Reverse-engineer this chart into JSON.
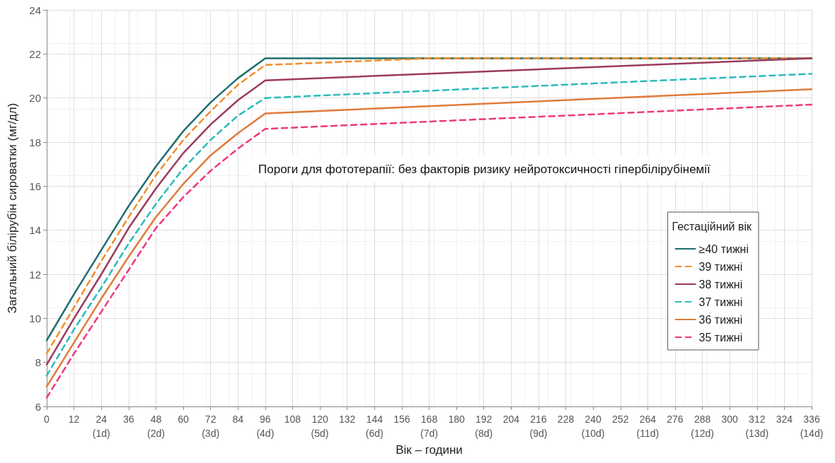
{
  "chart_data": {
    "type": "line",
    "xlabel": "Вік – години",
    "ylabel": "Загальний білірубін сироватки (мг/дл)",
    "legend_title": "Гестаційний вік",
    "annotations": [
      "Пороги для фототерапії: без факторів ризику нейротоксичності гіпербілірубінемії"
    ],
    "x": [
      0,
      12,
      24,
      36,
      48,
      60,
      72,
      84,
      96,
      336
    ],
    "series": [
      {
        "name": "≥40 тижні",
        "color": "#1f6e6e",
        "line_style": "solid",
        "values": [
          9.0,
          11.1,
          13.1,
          15.1,
          16.9,
          18.5,
          19.8,
          20.9,
          21.8,
          21.8
        ]
      },
      {
        "name": "39 тижні",
        "color": "#f28e2b",
        "line_style": "dashed",
        "x": [
          0,
          12,
          24,
          36,
          48,
          60,
          72,
          84,
          96,
          168,
          336
        ],
        "values": [
          8.4,
          10.5,
          12.6,
          14.6,
          16.5,
          18.1,
          19.4,
          20.6,
          21.5,
          21.8,
          21.8
        ]
      },
      {
        "name": "38 тижні",
        "color": "#9b3a5e",
        "line_style": "solid",
        "values": [
          7.9,
          10.0,
          12.0,
          14.1,
          15.9,
          17.5,
          18.8,
          19.9,
          20.8,
          21.8
        ]
      },
      {
        "name": "37 тижні",
        "color": "#2bbbbb",
        "line_style": "dashed",
        "values": [
          7.4,
          9.5,
          11.4,
          13.4,
          15.2,
          16.8,
          18.1,
          19.2,
          20.0,
          21.1
        ]
      },
      {
        "name": "36 тижні",
        "color": "#e07b39",
        "line_style": "solid",
        "values": [
          6.9,
          8.9,
          10.9,
          12.8,
          14.6,
          16.1,
          17.4,
          18.4,
          19.3,
          20.4
        ]
      },
      {
        "name": "35 тижні",
        "color": "#f0377f",
        "line_style": "dashed",
        "values": [
          6.4,
          8.4,
          10.3,
          12.2,
          14.1,
          15.5,
          16.7,
          17.7,
          18.6,
          19.7
        ]
      }
    ],
    "xlim": [
      0,
      336
    ],
    "xticks": [
      0,
      12,
      {
        "value": 24,
        "label": "24\n(1d)"
      },
      36,
      {
        "value": 48,
        "label": "48\n(2d)"
      },
      60,
      {
        "value": 72,
        "label": "72\n(3d)"
      },
      84,
      {
        "value": 96,
        "label": "96\n(4d)"
      },
      108,
      {
        "value": 120,
        "label": "120\n(5d)"
      },
      132,
      {
        "value": 144,
        "label": "144\n(6d)"
      },
      156,
      {
        "value": 168,
        "label": "168\n(7d)"
      },
      180,
      {
        "value": 192,
        "label": "192\n(8d)"
      },
      204,
      {
        "value": 216,
        "label": "216\n(9d)"
      },
      228,
      {
        "value": 240,
        "label": "240\n(10d)"
      },
      252,
      {
        "value": 264,
        "label": "264\n(11d)"
      },
      276,
      {
        "value": 288,
        "label": "288\n(12d)"
      },
      300,
      {
        "value": 312,
        "label": "312\n(13d)"
      },
      324,
      {
        "value": 336,
        "label": "336\n(14d)"
      }
    ],
    "ylim": [
      6,
      24
    ],
    "yticks": [
      6,
      8,
      10,
      12,
      14,
      16,
      18,
      20,
      22,
      24
    ],
    "grid": true,
    "legend": "right",
    "marker": "none"
  }
}
